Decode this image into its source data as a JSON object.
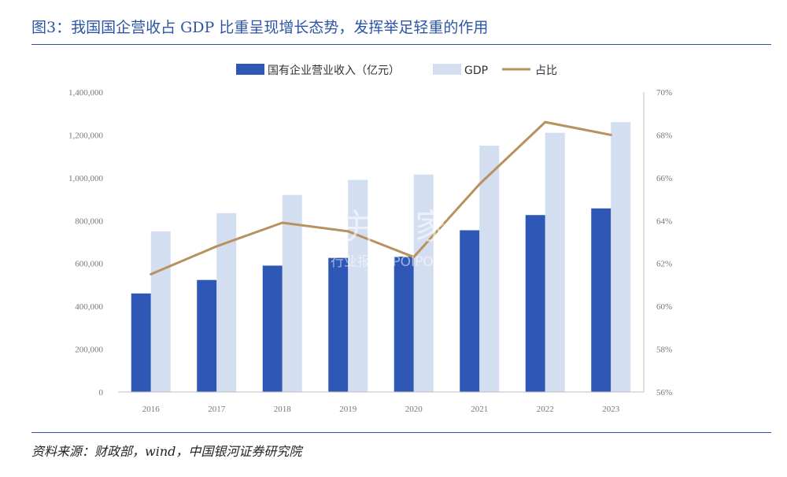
{
  "figure": {
    "title": "图3：我国国企营收占 GDP 比重呈现增长态势，发挥举足轻重的作用",
    "source": "资料来源：财政部，wind，中国银河证券研究院"
  },
  "watermark": {
    "main": "并购家",
    "sub": "行业报告 IPOIPO.CN"
  },
  "colors": {
    "accent": "#2d55a5",
    "bar_soe": "#2f58b6",
    "bar_gdp": "#d3def1",
    "line": "#b8925e",
    "axis": "#bfbfbf"
  },
  "chart_data": {
    "type": "bar",
    "categories": [
      "2016",
      "2017",
      "2018",
      "2019",
      "2020",
      "2021",
      "2022",
      "2023"
    ],
    "series": [
      {
        "name": "国有企业营业收入（亿元）",
        "kind": "bar",
        "axis": "left",
        "color": "#2f58b6",
        "values": [
          460000,
          523000,
          590000,
          626000,
          632000,
          755000,
          826000,
          857000
        ]
      },
      {
        "name": "GDP",
        "kind": "bar",
        "axis": "left",
        "color": "#d3def1",
        "values": [
          750000,
          835000,
          920000,
          990000,
          1015000,
          1150000,
          1210000,
          1260000
        ]
      },
      {
        "name": "占比",
        "kind": "line",
        "axis": "right",
        "color": "#b8925e",
        "values": [
          61.5,
          62.8,
          63.9,
          63.5,
          62.3,
          65.7,
          68.6,
          68.0
        ]
      }
    ],
    "y_left": {
      "lim": [
        0,
        1400000
      ],
      "ticks": [
        "0",
        "200,000",
        "400,000",
        "600,000",
        "800,000",
        "1,000,000",
        "1,200,000",
        "1,400,000"
      ]
    },
    "y_right": {
      "lim": [
        56,
        70
      ],
      "ticks": [
        "56%",
        "58%",
        "60%",
        "62%",
        "64%",
        "66%",
        "68%",
        "70%"
      ]
    },
    "legend_position": "top-center",
    "grid": false
  }
}
